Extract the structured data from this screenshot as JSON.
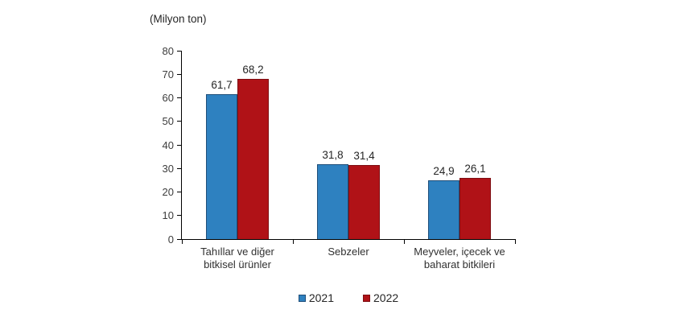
{
  "chart_data": {
    "type": "bar",
    "title": "(Milyon ton)",
    "categories": [
      "Tahıllar ve diğer\nbitkisel ürünler",
      "Sebzeler",
      "Meyveler, içecek ve\nbaharat  bitkileri"
    ],
    "series": [
      {
        "name": "2021",
        "color": "#2E81C0",
        "border_color": "#1F4E79",
        "values": [
          61.7,
          31.8,
          24.9
        ]
      },
      {
        "name": "2022",
        "color": "#B01217",
        "border_color": "#7E0E12",
        "values": [
          68.2,
          31.4,
          26.1
        ]
      }
    ],
    "value_labels": {
      "2021": [
        "61,7",
        "31,8",
        "24,9"
      ],
      "2022": [
        "68,2",
        "31,4",
        "26,1"
      ]
    },
    "ylabel": "",
    "xlabel": "",
    "ylim": [
      0,
      80
    ],
    "yticks": [
      0,
      10,
      20,
      30,
      40,
      50,
      60,
      70,
      80
    ],
    "grid": false,
    "legend_position": "bottom",
    "decimal_separator": ",",
    "background_color": "#ffffff",
    "axis_color": "#000000"
  }
}
